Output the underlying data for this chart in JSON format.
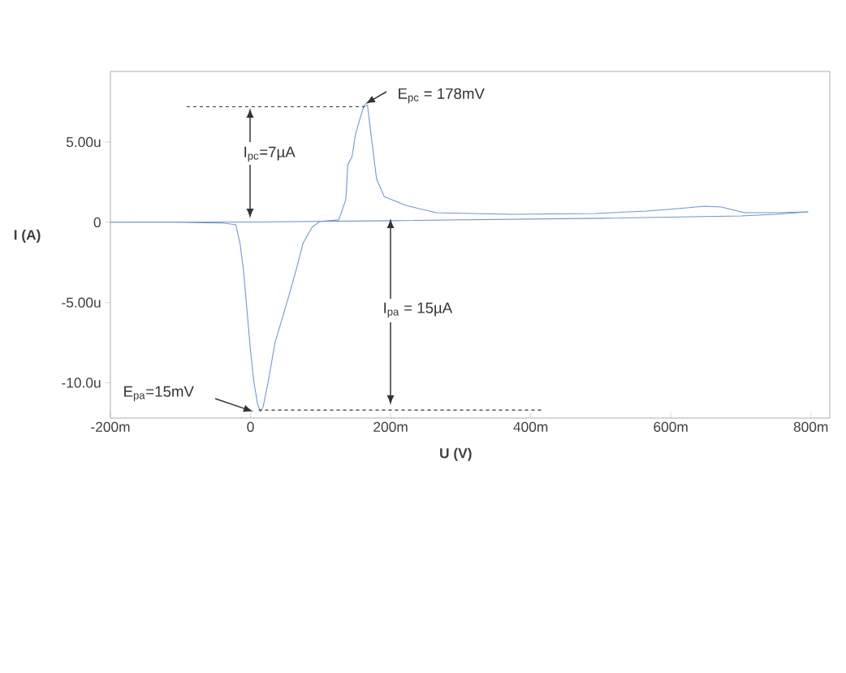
{
  "chart_data": {
    "type": "line",
    "xlabel": "U (V)",
    "ylabel": "I (A)",
    "series": [
      {
        "color": "#6f93dc",
        "x": [
          -200,
          -100,
          -40,
          -21,
          -15,
          -10,
          -6,
          0,
          5,
          10,
          14,
          18,
          25,
          35,
          52,
          65,
          75,
          88,
          99,
          126,
          136,
          139,
          145,
          150,
          162,
          167,
          172,
          180,
          191,
          222,
          265,
          372,
          492,
          565,
          610,
          648,
          672,
          705,
          750,
          796
        ],
        "values": [
          0,
          0,
          -0.05,
          -0.15,
          -1.3,
          -3,
          -5,
          -8,
          -10,
          -11.3,
          -11.8,
          -11.5,
          -10,
          -7.5,
          -5,
          -3,
          -1.3,
          -0.3,
          0.05,
          0.15,
          1.4,
          3.6,
          4.1,
          5.5,
          7.3,
          7.3,
          5.5,
          2.7,
          1.6,
          1.05,
          0.6,
          0.5,
          0.55,
          0.7,
          0.85,
          1.0,
          0.95,
          0.6,
          0.6,
          0.65
        ]
      },
      {
        "color": "#6f93dc",
        "x": [
          -200,
          0,
          200,
          500,
          700,
          750,
          796
        ],
        "values": [
          0,
          0.02,
          0.1,
          0.25,
          0.4,
          0.5,
          0.65
        ]
      }
    ],
    "xlim": [
      -200,
      827
    ],
    "ylim": [
      -12.2,
      9.4
    ],
    "xticks": [
      {
        "value": -200,
        "label": "-200m"
      },
      0,
      {
        "value": 200,
        "label": "200m"
      },
      {
        "value": 400,
        "label": "400m"
      },
      {
        "value": 600,
        "label": "600m"
      },
      {
        "value": 800,
        "label": "800m"
      }
    ],
    "yticks": [
      {
        "value": -10,
        "label": "-10.0u"
      },
      {
        "value": -5,
        "label": "-5.00u"
      },
      0,
      {
        "value": 5,
        "label": "5.00u"
      }
    ],
    "ref_lines": [
      {
        "axis": "y",
        "value": 7.2,
        "color": "#333333",
        "line_style": "dashed"
      },
      {
        "axis": "y",
        "value": -11.7,
        "color": "#333333",
        "line_style": "dashed"
      }
    ],
    "annotations": [
      "E$_{pc}$ = 178mV",
      "I$_{pc}$=7µA",
      "I$_{pa}$ = 15µA",
      "E$_{pa}$=15mV"
    ]
  }
}
